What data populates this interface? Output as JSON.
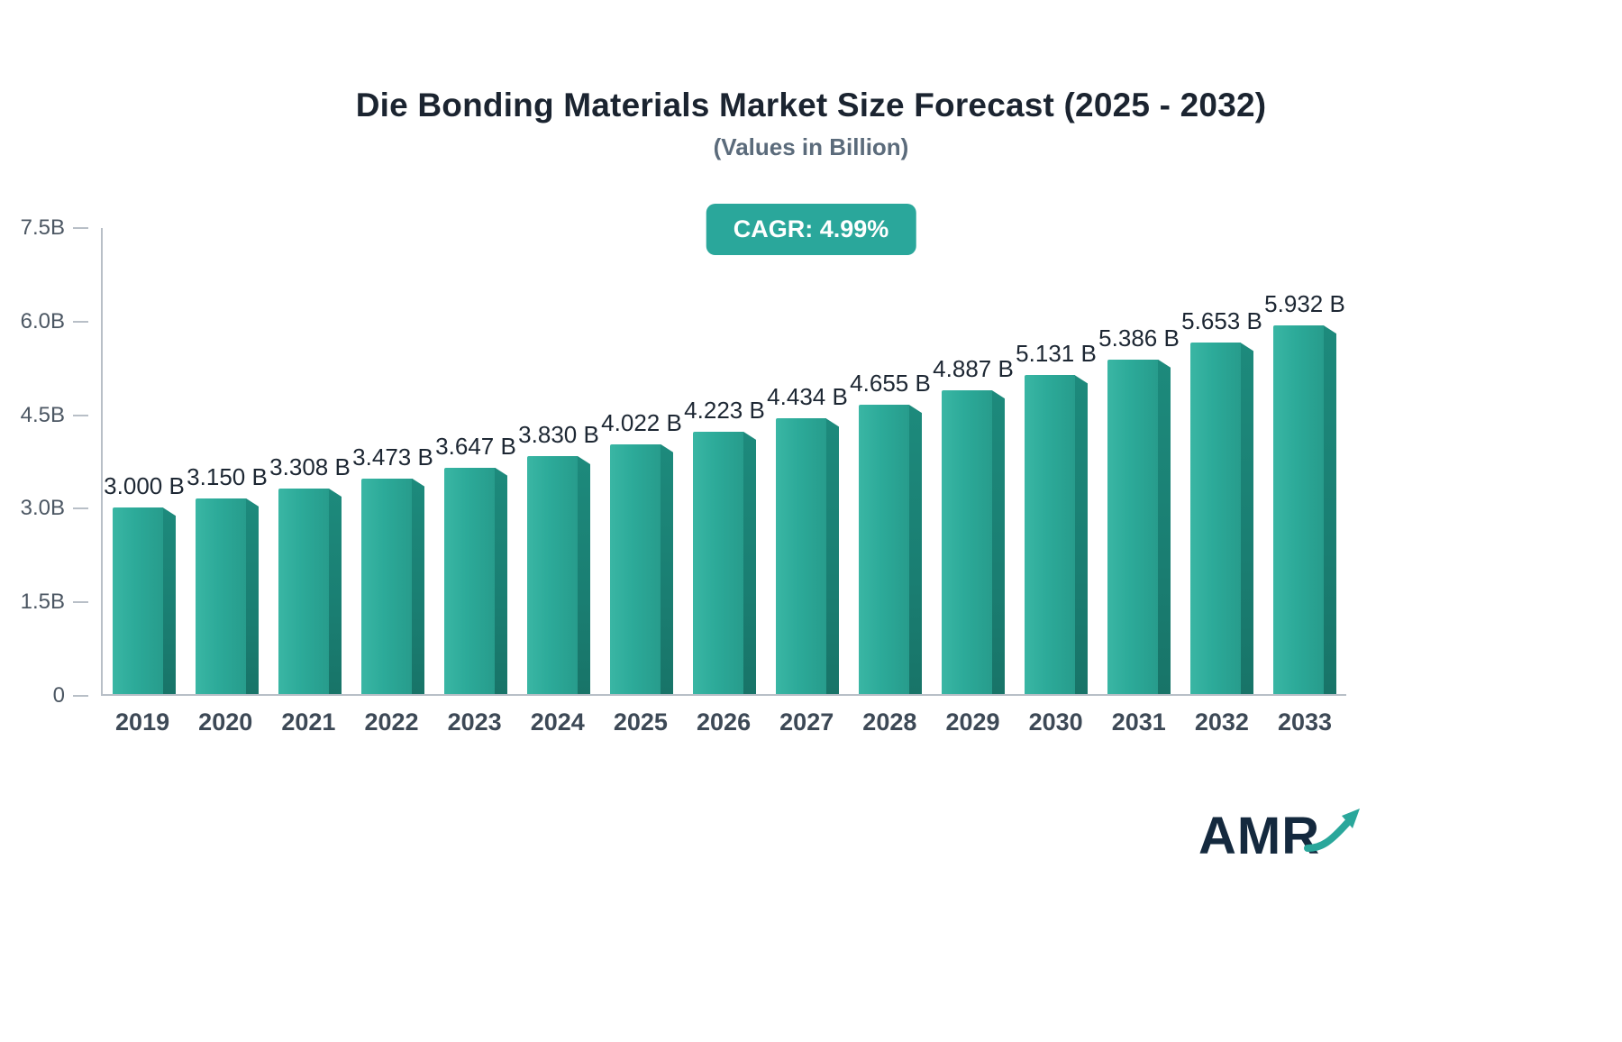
{
  "header": {
    "title": "Die Bonding Materials Market Size Forecast (2025 - 2032)",
    "subtitle": "(Values in Billion)",
    "cagr_badge": "CAGR: 4.99%"
  },
  "chart_data": {
    "type": "bar",
    "title": "Die Bonding Materials Market Size Forecast (2025 - 2032)",
    "subtitle": "(Values in Billion)",
    "categories": [
      "2019",
      "2020",
      "2021",
      "2022",
      "2023",
      "2024",
      "2025",
      "2026",
      "2027",
      "2028",
      "2029",
      "2030",
      "2031",
      "2032",
      "2033"
    ],
    "values": [
      3.0,
      3.15,
      3.308,
      3.473,
      3.647,
      3.83,
      4.022,
      4.223,
      4.434,
      4.655,
      4.887,
      5.131,
      5.386,
      5.653,
      5.932
    ],
    "value_labels": [
      "3.000 B",
      "3.150 B",
      "3.308 B",
      "3.473 B",
      "3.647 B",
      "3.830 B",
      "4.022 B",
      "4.223 B",
      "4.434 B",
      "4.655 B",
      "4.887 B",
      "5.131 B",
      "5.386 B",
      "5.653 B",
      "5.932 B"
    ],
    "xlabel": "",
    "ylabel": "",
    "ylim": [
      0,
      7.5
    ],
    "yticks": [
      0,
      1.5,
      3.0,
      4.5,
      6.0,
      7.5
    ],
    "ytick_labels": [
      "0",
      "1.5B",
      "3.0B",
      "4.5B",
      "6.0B",
      "7.5B"
    ],
    "grid": false,
    "legend": false,
    "bar_color": "#2CAA99",
    "bar_side_color": "#1A7E72"
  },
  "badge_color": "#2AA79B",
  "logo": {
    "text": "AMR",
    "arrow_color": "#2AA79B"
  }
}
